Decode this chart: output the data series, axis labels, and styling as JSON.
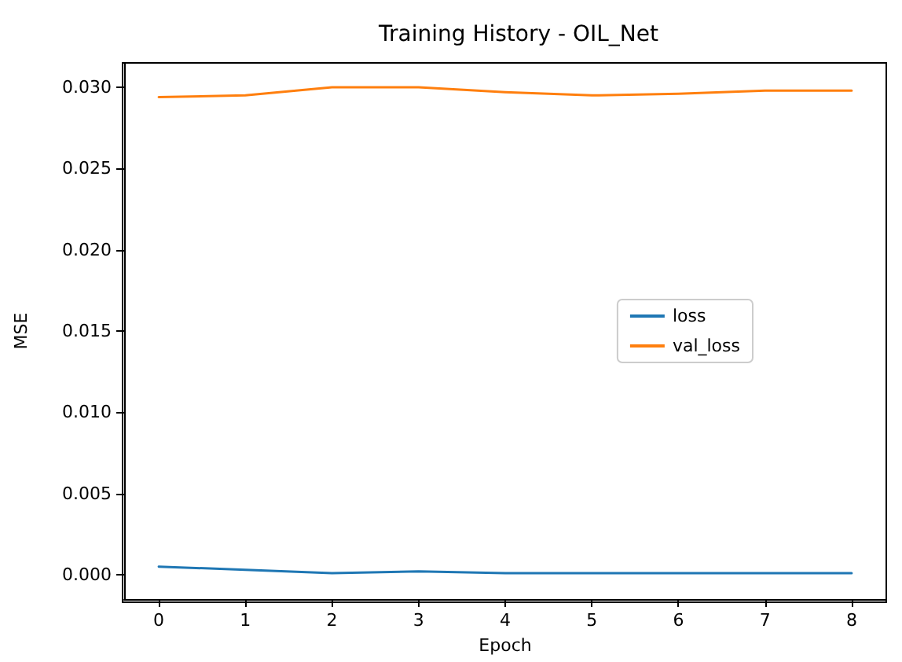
{
  "chart_data": {
    "type": "line",
    "title": "Training History - OIL_Net",
    "xlabel": "Epoch",
    "ylabel": "MSE",
    "x": [
      0,
      1,
      2,
      3,
      4,
      5,
      6,
      7,
      8
    ],
    "series": [
      {
        "name": "loss",
        "color": "#1f77b4",
        "values": [
          0.0005,
          0.0003,
          0.0001,
          0.0002,
          0.0001,
          0.0001,
          0.0001,
          0.0001,
          0.0001
        ]
      },
      {
        "name": "val_loss",
        "color": "#ff7f0e",
        "values": [
          0.0294,
          0.0295,
          0.03,
          0.03,
          0.0297,
          0.0295,
          0.0296,
          0.0298,
          0.0298
        ]
      }
    ],
    "xlim": [
      -0.4,
      8.4
    ],
    "xticks": [
      0,
      1,
      2,
      3,
      4,
      5,
      6,
      7,
      8
    ],
    "ylim": [
      -0.0015,
      0.0315
    ],
    "yticks": [
      {
        "value": 0,
        "label": "0.000"
      },
      0.005,
      {
        "value": 0.01,
        "label": "0.010"
      },
      0.015,
      {
        "value": 0.02,
        "label": "0.020"
      },
      0.025,
      {
        "value": 0.03,
        "label": "0.030"
      }
    ],
    "grid": false,
    "legend": "right",
    "marker": "none",
    "line_style": "solid"
  }
}
